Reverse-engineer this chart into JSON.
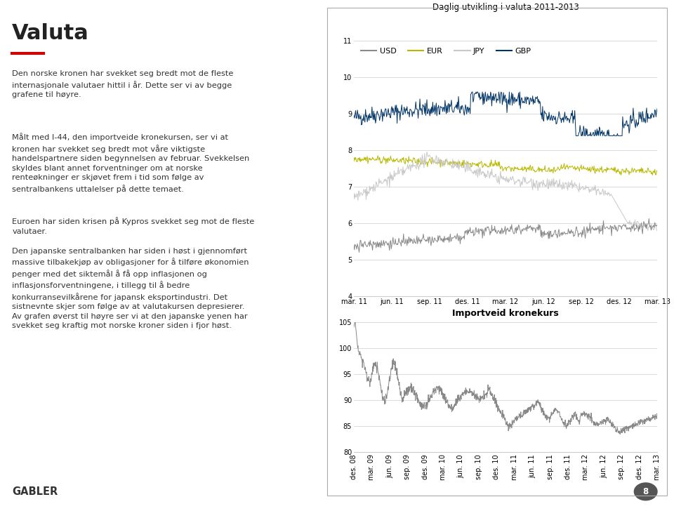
{
  "chart1_title": "Daglig utvikling i valuta 2011-2013",
  "chart1_ylim": [
    4,
    11
  ],
  "chart1_yticks": [
    4,
    5,
    6,
    7,
    8,
    9,
    10,
    11
  ],
  "chart1_xtick_labels": [
    "mar. 11",
    "jun. 11",
    "sep. 11",
    "des. 11",
    "mar. 12",
    "jun. 12",
    "sep. 12",
    "des. 12",
    "mar. 13"
  ],
  "chart1_legend": [
    "USD",
    "EUR",
    "JPY",
    "GBP"
  ],
  "chart1_colors": [
    "#888888",
    "#b8b800",
    "#c8c8c8",
    "#003366"
  ],
  "chart2_title": "Importveid kronekurs",
  "chart2_ylim": [
    80,
    105
  ],
  "chart2_yticks": [
    80,
    85,
    90,
    95,
    100,
    105
  ],
  "chart2_xtick_labels": [
    "des. 08",
    "mar. 09",
    "jun. 09",
    "sep. 09",
    "des. 09",
    "mar. 10",
    "jun. 10",
    "sep. 10",
    "des. 10",
    "mar. 11",
    "jun. 11",
    "sep. 11",
    "des. 11",
    "mar. 12",
    "jun. 12",
    "sep. 12",
    "des. 12",
    "mar. 13"
  ],
  "chart2_color": "#888888",
  "grid_color": "#cccccc",
  "tick_fontsize": 7.0,
  "legend_fontsize": 8.0,
  "title_fontsize": 8.5
}
